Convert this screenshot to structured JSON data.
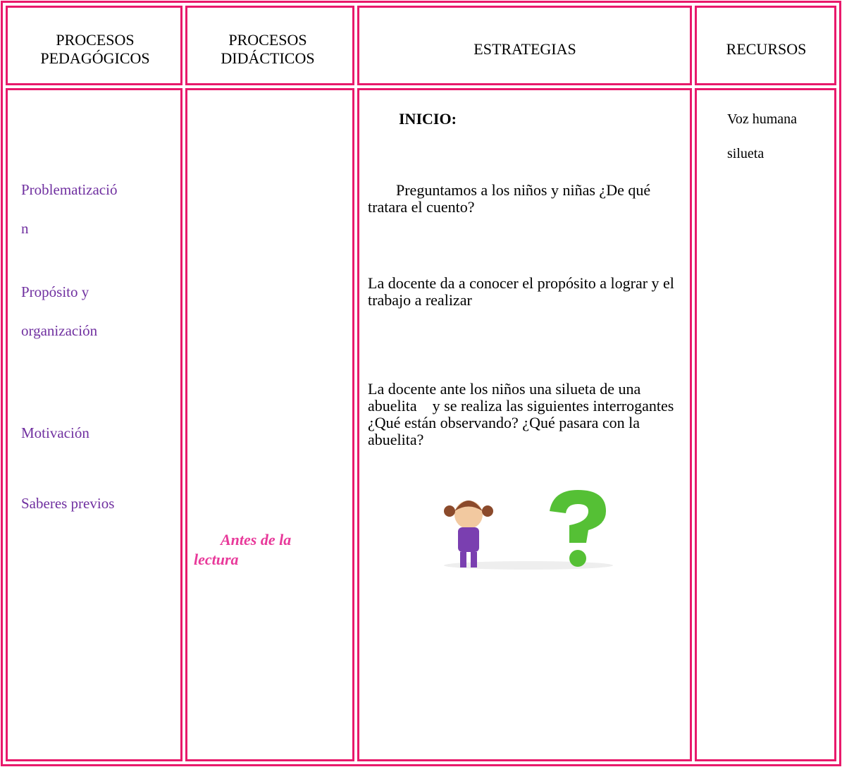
{
  "table": {
    "header": [
      "PROCESOS PEDAGÓGICOS",
      "PROCESOS DIDÁCTICOS",
      "ESTRATEGIAS",
      "RECURSOS"
    ],
    "pedagogicos": [
      "Problematizació",
      "n",
      "Propósito y",
      "organización",
      "Motivación",
      "Saberes previos"
    ],
    "didacticos": "Antes de la lectura",
    "estrategias": {
      "heading": "INICIO:",
      "paragraphs": [
        "Preguntamos a los niños y niñas ¿De qué tratara el cuento?",
        "La docente da a conocer el propósito a lograr y el trabajo a realizar",
        "La docente ante los niños una silueta de una abuelita    y se realiza las siguientes interrogantes ¿Qué están observando? ¿Qué pasara con la abuelita?"
      ]
    },
    "recursos": [
      "Voz humana",
      "silueta"
    ]
  }
}
